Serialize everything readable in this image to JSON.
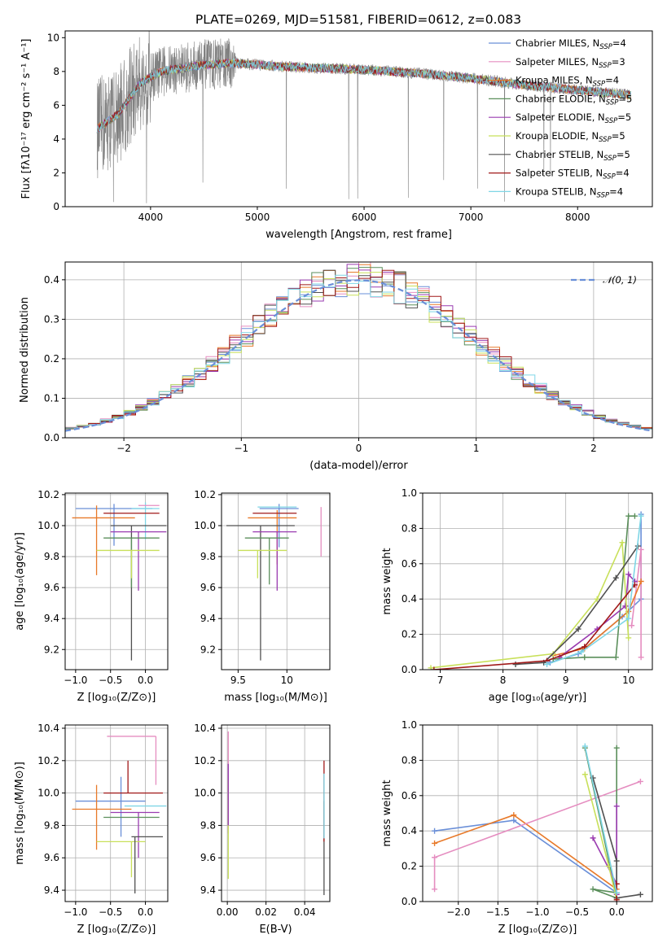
{
  "figure": {
    "title": "PLATE=0269, MJD=51581, FIBERID=0612, z=0.083"
  },
  "chart_data": [
    {
      "type": "line",
      "xlabel": "wavelength [Angstrom, rest frame]",
      "ylabel": "Flux [fλ10⁻¹⁷ erg cm⁻² s⁻¹ A⁻¹]",
      "xlim": [
        3200,
        8700
      ],
      "ylim": [
        0,
        10.4
      ],
      "xticks": [
        4000,
        5000,
        6000,
        7000,
        8000
      ],
      "yticks": [
        0,
        2,
        4,
        6,
        8,
        10
      ],
      "data_color": "#808080",
      "legend_position": "right",
      "legend": [
        {
          "label": "Chabrier MILES, N",
          "sub": "SSP",
          "tail": "=4",
          "color": "#6a8fd8"
        },
        {
          "label": "Salpeter MILES, N",
          "sub": "SSP",
          "tail": "=3",
          "color": "#e58dc0"
        },
        {
          "label": "Kroupa MILES, N",
          "sub": "SSP",
          "tail": "=4",
          "color": "#e87a2a"
        },
        {
          "label": "Chabrier ELODIE, N",
          "sub": "SSP",
          "tail": "=5",
          "color": "#5b8f5b"
        },
        {
          "label": "Salpeter ELODIE, N",
          "sub": "SSP",
          "tail": "=5",
          "color": "#9a3bb0"
        },
        {
          "label": "Kroupa ELODIE, N",
          "sub": "SSP",
          "tail": "=5",
          "color": "#c8e05a"
        },
        {
          "label": "Chabrier STELIB, N",
          "sub": "SSP",
          "tail": "=5",
          "color": "#505050"
        },
        {
          "label": "Salpeter STELIB, N",
          "sub": "SSP",
          "tail": "=4",
          "color": "#a01818"
        },
        {
          "label": "Kroupa STELIB, N",
          "sub": "SSP",
          "tail": "=4",
          "color": "#7fd6e6"
        }
      ],
      "model_range": [
        3500,
        8500
      ],
      "model_continuum": [
        [
          3500,
          4.6
        ],
        [
          3700,
          5.5
        ],
        [
          3900,
          7.3
        ],
        [
          4100,
          8.0
        ],
        [
          4500,
          8.4
        ],
        [
          4800,
          8.5
        ],
        [
          5200,
          8.3
        ],
        [
          5600,
          8.2
        ],
        [
          6000,
          8.1
        ],
        [
          6500,
          7.9
        ],
        [
          7000,
          7.6
        ],
        [
          7500,
          7.2
        ],
        [
          8000,
          6.9
        ],
        [
          8500,
          6.6
        ]
      ]
    },
    {
      "type": "bar",
      "xlabel": "(data-model)/error",
      "ylabel": "Normed distribution",
      "xlim": [
        -2.5,
        2.5
      ],
      "ylim": [
        0,
        0.445
      ],
      "xticks": [
        -2,
        -1,
        0,
        1,
        2
      ],
      "yticks": [
        0.0,
        0.1,
        0.2,
        0.3,
        0.4
      ],
      "xtick_labels": [
        "−2",
        "−1",
        "0",
        "1",
        "2"
      ],
      "bin_width": 0.1,
      "legend_position": "top-right",
      "legend": "𝒩(0, 1)",
      "normal_color": "#6a8fd8",
      "colors": [
        "#6a8fd8",
        "#e58dc0",
        "#e87a2a",
        "#5b8f5b",
        "#9a3bb0",
        "#c8e05a",
        "#505050",
        "#a01818",
        "#7fd6e6"
      ]
    },
    {
      "type": "scatter",
      "xlabel": "Z [log₁₀(Z/Z⊙)]",
      "ylabel": "age  [log₁₀(age/yr)]",
      "xlim": [
        -1.15,
        0.32
      ],
      "ylim": [
        9.07,
        10.21
      ],
      "xticks": [
        -1.0,
        -0.5,
        0.0
      ],
      "yticks": [
        9.2,
        9.4,
        9.6,
        9.8,
        10.0,
        10.2
      ],
      "xtick_labels": [
        "−1.0",
        "−0.5",
        "0.0"
      ],
      "points": [
        {
          "x": -0.45,
          "xerr": [
            0.55,
            0.55
          ],
          "y": 10.11,
          "yerr": [
            0.24,
            0.03
          ],
          "color": "#6a8fd8"
        },
        {
          "x": 0.0,
          "xerr": [
            0.2,
            0.2
          ],
          "y": 10.11,
          "yerr": [
            0.2,
            0.04
          ],
          "color": "#7fd6e6"
        },
        {
          "x": -0.7,
          "xerr": [
            0.35,
            0.55
          ],
          "y": 10.05,
          "yerr": [
            0.37,
            0.08
          ],
          "color": "#e87a2a"
        },
        {
          "x": -0.3,
          "xerr": [
            0.3,
            0.5
          ],
          "y": 10.08,
          "yerr": [
            0.0,
            0.0
          ],
          "color": "#a01818"
        },
        {
          "x": -0.2,
          "xerr": [
            0.3,
            0.5
          ],
          "y": 10.0,
          "yerr": [
            0.87,
            0.0
          ],
          "color": "#505050"
        },
        {
          "x": -0.1,
          "xerr": [
            0.4,
            0.4
          ],
          "y": 9.96,
          "yerr": [
            0.38,
            0.0
          ],
          "color": "#9a3bb0"
        },
        {
          "x": -0.2,
          "xerr": [
            0.4,
            0.4
          ],
          "y": 9.92,
          "yerr": [
            0.32,
            0.0
          ],
          "color": "#5b8f5b"
        },
        {
          "x": -0.2,
          "xerr": [
            0.5,
            0.4
          ],
          "y": 9.84,
          "yerr": [
            0.18,
            0.0
          ],
          "color": "#c8e05a"
        },
        {
          "x": 0.0,
          "xerr": [
            0.1,
            0.2
          ],
          "y": 10.13,
          "yerr": [
            0.0,
            0.0
          ],
          "color": "#e58dc0"
        }
      ]
    },
    {
      "type": "scatter",
      "xlabel": "mass [log₁₀(M/M⊙)]",
      "ylabel": "",
      "xlim": [
        9.33,
        10.44
      ],
      "ylim": [
        9.07,
        10.21
      ],
      "xticks": [
        9.5,
        10.0
      ],
      "yticks": [
        9.2,
        9.4,
        9.6,
        9.8,
        10.0,
        10.2
      ],
      "points": [
        {
          "x": 9.92,
          "xerr": [
            0.2,
            0.2
          ],
          "y": 10.11,
          "yerr": [
            0.25,
            0.03
          ],
          "color": "#6a8fd8"
        },
        {
          "x": 9.95,
          "xerr": [
            0.25,
            0.15
          ],
          "y": 10.12,
          "yerr": [
            0.0,
            0.0
          ],
          "color": "#7fd6e6"
        },
        {
          "x": 9.9,
          "xerr": [
            0.3,
            0.2
          ],
          "y": 10.05,
          "yerr": [
            0.3,
            0.05
          ],
          "color": "#e87a2a"
        },
        {
          "x": 9.95,
          "xerr": [
            0.3,
            0.15
          ],
          "y": 10.08,
          "yerr": [
            0.0,
            0.0
          ],
          "color": "#a01818"
        },
        {
          "x": 9.73,
          "xerr": [
            0.35,
            0.35
          ],
          "y": 10.0,
          "yerr": [
            0.87,
            0.0
          ],
          "color": "#505050"
        },
        {
          "x": 9.9,
          "xerr": [
            0.25,
            0.2
          ],
          "y": 9.96,
          "yerr": [
            0.38,
            0.0
          ],
          "color": "#9a3bb0"
        },
        {
          "x": 9.82,
          "xerr": [
            0.25,
            0.2
          ],
          "y": 9.92,
          "yerr": [
            0.3,
            0.0
          ],
          "color": "#5b8f5b"
        },
        {
          "x": 9.7,
          "xerr": [
            0.2,
            0.3
          ],
          "y": 9.84,
          "yerr": [
            0.18,
            0.0
          ],
          "color": "#c8e05a"
        },
        {
          "x": 10.35,
          "xerr": [
            0.0,
            0.0
          ],
          "y": 10.12,
          "yerr": [
            0.32,
            0.0
          ],
          "color": "#e58dc0"
        }
      ]
    },
    {
      "type": "line",
      "xlabel": "age  [log₁₀(age/yr)]",
      "ylabel": "mass weight",
      "xlim": [
        6.72,
        10.38
      ],
      "ylim": [
        0,
        1
      ],
      "xticks": [
        7,
        8,
        9,
        10
      ],
      "yticks": [
        0.0,
        0.2,
        0.4,
        0.6,
        0.8,
        1.0
      ],
      "series": [
        {
          "color": "#6a8fd8",
          "points": [
            [
              8.75,
              0.04
            ],
            [
              9.2,
              0.09
            ],
            [
              9.9,
              0.3
            ],
            [
              10.2,
              0.4
            ],
            [
              10.2,
              0.88
            ]
          ]
        },
        {
          "color": "#e58dc0",
          "points": [
            [
              10.05,
              0.25
            ],
            [
              10.2,
              0.68
            ],
            [
              10.2,
              0.07
            ]
          ]
        },
        {
          "color": "#e87a2a",
          "points": [
            [
              8.8,
              0.08
            ],
            [
              9.3,
              0.12
            ],
            [
              10.0,
              0.33
            ],
            [
              10.2,
              0.5
            ]
          ]
        },
        {
          "color": "#5b8f5b",
          "points": [
            [
              8.8,
              0.06
            ],
            [
              9.3,
              0.07
            ],
            [
              9.8,
              0.07
            ],
            [
              10.0,
              0.87
            ],
            [
              10.1,
              0.87
            ]
          ]
        },
        {
          "color": "#9a3bb0",
          "points": [
            [
              8.9,
              0.07
            ],
            [
              9.5,
              0.23
            ],
            [
              9.95,
              0.36
            ],
            [
              10.0,
              0.54
            ],
            [
              10.1,
              0.5
            ]
          ]
        },
        {
          "color": "#c8e05a",
          "points": [
            [
              6.85,
              0.01
            ],
            [
              8.8,
              0.09
            ],
            [
              9.5,
              0.4
            ],
            [
              9.9,
              0.72
            ],
            [
              10.0,
              0.18
            ]
          ]
        },
        {
          "color": "#505050",
          "points": [
            [
              8.2,
              0.03
            ],
            [
              8.65,
              0.04
            ],
            [
              9.2,
              0.23
            ],
            [
              9.8,
              0.52
            ],
            [
              10.15,
              0.7
            ]
          ]
        },
        {
          "color": "#a01818",
          "points": [
            [
              6.9,
              0.0
            ],
            [
              8.7,
              0.05
            ],
            [
              9.3,
              0.13
            ],
            [
              10.1,
              0.48
            ]
          ]
        },
        {
          "color": "#7fd6e6",
          "points": [
            [
              8.7,
              0.03
            ],
            [
              9.25,
              0.1
            ],
            [
              10.0,
              0.29
            ],
            [
              10.2,
              0.87
            ]
          ]
        }
      ]
    },
    {
      "type": "scatter",
      "xlabel": "Z [log₁₀(Z/Z⊙)]",
      "ylabel": "mass [log₁₀(M/M⊙)]",
      "xlim": [
        -1.15,
        0.32
      ],
      "ylim": [
        9.33,
        10.42
      ],
      "xticks": [
        -1.0,
        -0.5,
        0.0
      ],
      "yticks": [
        9.4,
        9.6,
        9.8,
        10.0,
        10.2,
        10.4
      ],
      "xtick_labels": [
        "−1.0",
        "−0.5",
        "0.0"
      ],
      "points": [
        {
          "x": 0.15,
          "xerr": [
            0.7,
            0.0
          ],
          "y": 10.35,
          "yerr": [
            0.3,
            0.0
          ],
          "color": "#e58dc0"
        },
        {
          "x": -0.25,
          "xerr": [
            0.0,
            0.0
          ],
          "y": 10.0,
          "yerr": [
            0.0,
            0.2
          ],
          "color": "#a01818"
        },
        {
          "x": -0.35,
          "xerr": [
            0.65,
            0.35
          ],
          "y": 9.95,
          "yerr": [
            0.22,
            0.15
          ],
          "color": "#6a8fd8"
        },
        {
          "x": -0.7,
          "xerr": [
            0.35,
            0.5
          ],
          "y": 9.9,
          "yerr": [
            0.25,
            0.15
          ],
          "color": "#e87a2a"
        },
        {
          "x": -0.2,
          "xerr": [
            0.4,
            0.45
          ],
          "y": 10.0,
          "yerr": [
            0.0,
            0.0
          ],
          "color": "#a01818"
        },
        {
          "x": 0.0,
          "xerr": [
            0.3,
            0.3
          ],
          "y": 9.92,
          "yerr": [
            0.0,
            0.0
          ],
          "color": "#7fd6e6"
        },
        {
          "x": -0.1,
          "xerr": [
            0.4,
            0.3
          ],
          "y": 9.88,
          "yerr": [
            0.28,
            0.0
          ],
          "color": "#9a3bb0"
        },
        {
          "x": -0.2,
          "xerr": [
            0.4,
            0.4
          ],
          "y": 9.85,
          "yerr": [
            0.0,
            0.0
          ],
          "color": "#5b8f5b"
        },
        {
          "x": -0.2,
          "xerr": [
            0.5,
            0.2
          ],
          "y": 9.7,
          "yerr": [
            0.22,
            0.0
          ],
          "color": "#c8e05a"
        },
        {
          "x": -0.15,
          "xerr": [
            0.05,
            0.4
          ],
          "y": 9.73,
          "yerr": [
            0.35,
            0.0
          ],
          "color": "#505050"
        }
      ]
    },
    {
      "type": "scatter",
      "xlabel": "E(B-V)",
      "ylabel": "",
      "xlim": [
        -0.003,
        0.053
      ],
      "ylim": [
        9.33,
        10.42
      ],
      "xticks": [
        0.0,
        0.02,
        0.04
      ],
      "yticks": [
        9.4,
        9.6,
        9.8,
        10.0,
        10.2,
        10.4
      ],
      "xtick_labels": [
        "0.00",
        "0.02",
        "0.04"
      ],
      "segments": [
        {
          "x": 0.0005,
          "y0": 9.75,
          "y1": 10.38,
          "color": "#e58dc0"
        },
        {
          "x": 0.0005,
          "y0": 9.47,
          "y1": 10.08,
          "color": "#c8e05a"
        },
        {
          "x": 0.0005,
          "y0": 9.8,
          "y1": 10.18,
          "color": "#9a3bb0"
        },
        {
          "x": 0.05,
          "y0": 9.37,
          "y1": 9.95,
          "color": "#505050"
        },
        {
          "x": 0.05,
          "y0": 9.7,
          "y1": 10.2,
          "color": "#a01818"
        },
        {
          "x": 0.05,
          "y0": 9.72,
          "y1": 10.12,
          "color": "#7fd6e6"
        }
      ]
    },
    {
      "type": "line",
      "xlabel": "Z [log₁₀(Z/Z⊙)]",
      "ylabel": "mass weight",
      "xlim": [
        -2.45,
        0.45
      ],
      "ylim": [
        0,
        1
      ],
      "xticks": [
        -2.0,
        -1.5,
        -1.0,
        -0.5,
        0.0
      ],
      "yticks": [
        0.0,
        0.2,
        0.4,
        0.6,
        0.8,
        1.0
      ],
      "xtick_labels": [
        "−2.0",
        "−1.5",
        "−1.0",
        "−0.5",
        "0.0"
      ],
      "series": [
        {
          "color": "#6a8fd8",
          "points": [
            [
              -2.3,
              0.4
            ],
            [
              -1.3,
              0.46
            ],
            [
              0.0,
              0.05
            ]
          ]
        },
        {
          "color": "#e87a2a",
          "points": [
            [
              -2.3,
              0.33
            ],
            [
              -1.3,
              0.49
            ],
            [
              0.0,
              0.07
            ]
          ]
        },
        {
          "color": "#e58dc0",
          "points": [
            [
              -2.3,
              0.07
            ],
            [
              -2.3,
              0.25
            ],
            [
              0.3,
              0.68
            ]
          ]
        },
        {
          "color": "#5b8f5b",
          "points": [
            [
              -0.4,
              0.87
            ],
            [
              0.0,
              0.02
            ],
            [
              -0.3,
              0.07
            ],
            [
              0.0,
              0.05
            ],
            [
              0.0,
              0.87
            ]
          ]
        },
        {
          "color": "#9a3bb0",
          "points": [
            [
              -0.3,
              0.36
            ],
            [
              0.0,
              0.1
            ],
            [
              0.0,
              0.54
            ],
            [
              0.0,
              0.04
            ]
          ]
        },
        {
          "color": "#c8e05a",
          "points": [
            [
              -0.4,
              0.72
            ],
            [
              -0.1,
              0.2
            ],
            [
              0.0,
              0.01
            ]
          ]
        },
        {
          "color": "#505050",
          "points": [
            [
              -0.3,
              0.7
            ],
            [
              0.0,
              0.23
            ],
            [
              0.0,
              0.02
            ],
            [
              0.3,
              0.04
            ]
          ]
        },
        {
          "color": "#a01818",
          "points": [
            [
              0.0,
              0.1
            ],
            [
              0.0,
              0.01
            ]
          ]
        },
        {
          "color": "#7fd6e6",
          "points": [
            [
              -0.4,
              0.88
            ],
            [
              0.0,
              0.05
            ]
          ]
        }
      ]
    }
  ]
}
